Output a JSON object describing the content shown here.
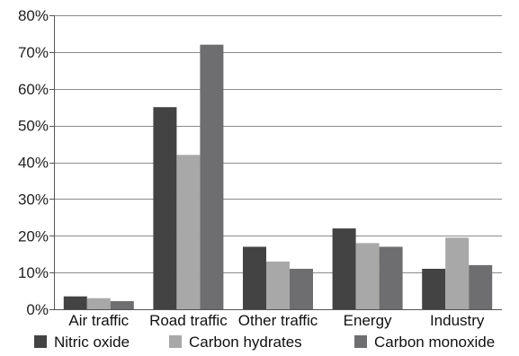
{
  "chart_data": {
    "type": "bar",
    "categories": [
      "Air traffic",
      "Road traffic",
      "Other traffic",
      "Energy",
      "Industry"
    ],
    "series": [
      {
        "name": "Nitric oxide",
        "values": [
          3.5,
          55,
          17,
          22,
          11
        ]
      },
      {
        "name": "Carbon hydrates",
        "values": [
          3,
          42,
          13,
          18,
          19.5
        ]
      },
      {
        "name": "Carbon monoxide",
        "values": [
          2.2,
          72,
          11,
          17,
          12
        ]
      }
    ],
    "title": "",
    "xlabel": "",
    "ylabel": "",
    "ylim": [
      0,
      80
    ],
    "yticks": [
      0,
      10,
      20,
      30,
      40,
      50,
      60,
      70,
      80
    ],
    "ytick_labels": [
      "0%",
      "10%",
      "20%",
      "30%",
      "40%",
      "50%",
      "60%",
      "70%",
      "80%"
    ],
    "grid": true,
    "legend_position": "bottom",
    "colors": [
      "#434343",
      "#a8a8a8",
      "#6e6e70"
    ]
  }
}
